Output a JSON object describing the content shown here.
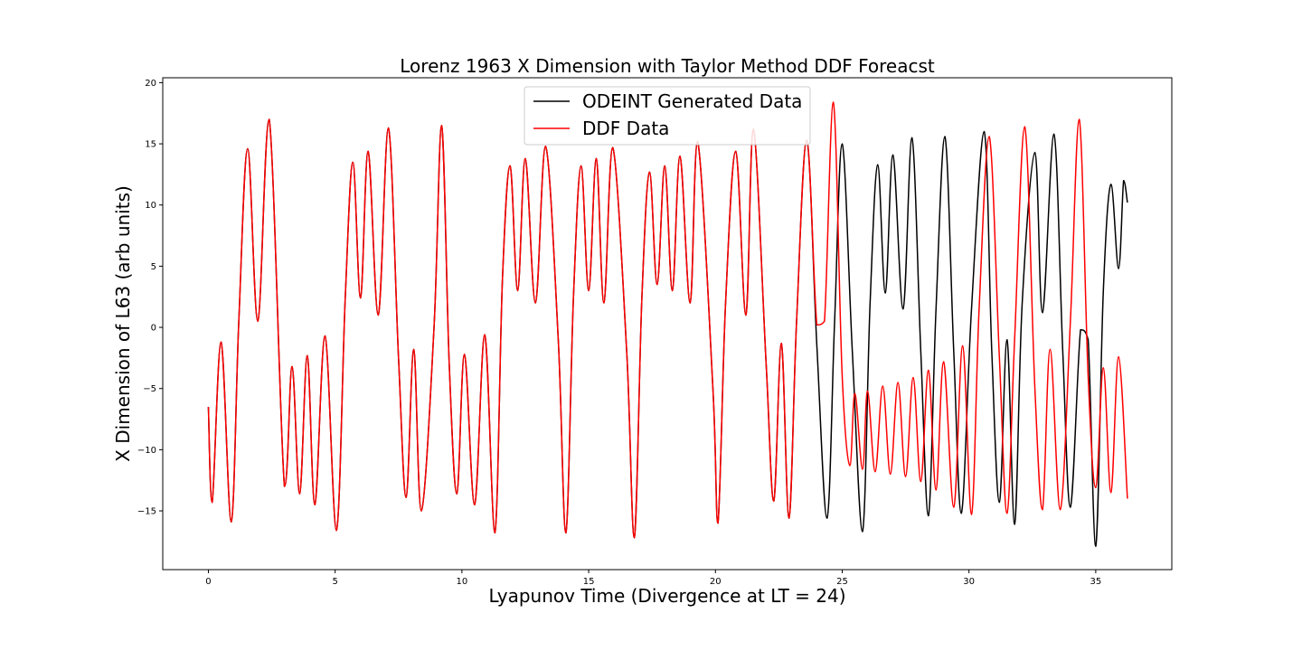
{
  "chart_data": {
    "type": "line",
    "title": "Lorenz 1963 X Dimension with Taylor Method DDF Foreacst",
    "xlabel": "Lyapunov Time (Divergence at LT = 24)",
    "ylabel": "X Dimension of L63 (arb units)",
    "xlim": [
      -1.8,
      38.0
    ],
    "ylim": [
      -19.8,
      20.4
    ],
    "xticks": [
      0,
      5,
      10,
      15,
      20,
      25,
      30,
      35
    ],
    "yticks": [
      -15,
      -10,
      -5,
      0,
      5,
      10,
      15,
      20
    ],
    "xtick_labels": [
      "0",
      "5",
      "10",
      "15",
      "20",
      "25",
      "30",
      "35"
    ],
    "ytick_labels": [
      "−15",
      "−10",
      "−5",
      "0",
      "5",
      "10",
      "15",
      "20"
    ],
    "grid": false,
    "legend": "upper-center",
    "series": [
      {
        "name": "ODEINT Generated Data",
        "color": "#000000",
        "points": [
          [
            0,
            -6.5
          ],
          [
            0.15,
            -14.3
          ],
          [
            0.5,
            -1.2
          ],
          [
            0.9,
            -15.9
          ],
          [
            1.2,
            0.5
          ],
          [
            1.55,
            14.6
          ],
          [
            1.95,
            0.5
          ],
          [
            2.4,
            17.0
          ],
          [
            3.0,
            -13.0
          ],
          [
            3.3,
            -3.2
          ],
          [
            3.6,
            -13.6
          ],
          [
            3.9,
            -2.3
          ],
          [
            4.2,
            -14.5
          ],
          [
            4.6,
            -0.7
          ],
          [
            5.05,
            -16.6
          ],
          [
            5.4,
            2.5
          ],
          [
            5.7,
            13.5
          ],
          [
            6.0,
            2.4
          ],
          [
            6.3,
            14.4
          ],
          [
            6.7,
            1.0
          ],
          [
            7.1,
            16.3
          ],
          [
            7.5,
            -2.5
          ],
          [
            7.8,
            -13.9
          ],
          [
            8.1,
            -1.8
          ],
          [
            8.4,
            -15.0
          ],
          [
            8.9,
            0.0
          ],
          [
            9.2,
            16.5
          ],
          [
            9.5,
            -3.0
          ],
          [
            9.8,
            -13.6
          ],
          [
            10.1,
            -2.2
          ],
          [
            10.5,
            -14.5
          ],
          [
            10.9,
            -0.6
          ],
          [
            11.3,
            -16.8
          ],
          [
            11.6,
            4.0
          ],
          [
            11.9,
            13.2
          ],
          [
            12.2,
            3.0
          ],
          [
            12.5,
            13.8
          ],
          [
            12.9,
            2.0
          ],
          [
            13.3,
            14.8
          ],
          [
            13.8,
            -1.0
          ],
          [
            14.1,
            -16.8
          ],
          [
            14.4,
            2.5
          ],
          [
            14.7,
            13.2
          ],
          [
            15.0,
            3.0
          ],
          [
            15.3,
            13.8
          ],
          [
            15.6,
            2.0
          ],
          [
            15.95,
            14.7
          ],
          [
            16.5,
            -2.0
          ],
          [
            16.8,
            -17.2
          ],
          [
            17.1,
            2.5
          ],
          [
            17.4,
            12.7
          ],
          [
            17.7,
            3.5
          ],
          [
            18.0,
            13.2
          ],
          [
            18.3,
            3.0
          ],
          [
            18.6,
            14.0
          ],
          [
            19.0,
            2.0
          ],
          [
            19.3,
            15.2
          ],
          [
            19.9,
            -5.0
          ],
          [
            20.1,
            -16.0
          ],
          [
            20.4,
            2.0
          ],
          [
            20.8,
            14.4
          ],
          [
            21.2,
            1.0
          ],
          [
            21.5,
            16.2
          ],
          [
            22.0,
            -3.0
          ],
          [
            22.3,
            -14.2
          ],
          [
            22.6,
            -1.3
          ],
          [
            22.9,
            -15.6
          ],
          [
            23.2,
            0.5
          ],
          [
            23.6,
            15.3
          ],
          [
            24.0,
            -1.5
          ],
          [
            24.4,
            -15.6
          ],
          [
            24.7,
            0.5
          ],
          [
            25.0,
            15.0
          ],
          [
            25.4,
            -2.0
          ],
          [
            25.8,
            -16.7
          ],
          [
            26.1,
            2.0
          ],
          [
            26.4,
            13.3
          ],
          [
            26.7,
            2.8
          ],
          [
            27.0,
            14.1
          ],
          [
            27.4,
            1.5
          ],
          [
            27.75,
            15.5
          ],
          [
            28.1,
            -2.0
          ],
          [
            28.4,
            -15.4
          ],
          [
            28.7,
            1.5
          ],
          [
            29.05,
            15.6
          ],
          [
            29.4,
            -2.0
          ],
          [
            29.7,
            -15.2
          ],
          [
            30.1,
            1.5
          ],
          [
            30.6,
            16.0
          ],
          [
            30.9,
            -2.0
          ],
          [
            31.2,
            -14.3
          ],
          [
            31.5,
            -1.0
          ],
          [
            31.8,
            -16.1
          ],
          [
            32.1,
            2.0
          ],
          [
            32.6,
            14.3
          ],
          [
            32.9,
            1.2
          ],
          [
            33.35,
            15.8
          ],
          [
            33.7,
            -2.0
          ],
          [
            34.0,
            -14.7
          ],
          [
            34.4,
            -0.2
          ],
          [
            34.7,
            -1.0
          ],
          [
            35.0,
            -17.9
          ],
          [
            35.3,
            3.0
          ],
          [
            35.6,
            11.7
          ],
          [
            35.9,
            4.8
          ],
          [
            36.1,
            12.0
          ],
          [
            36.25,
            10.2
          ]
        ]
      },
      {
        "name": "DDF Data",
        "color": "#ff0000",
        "points": [
          [
            0,
            -6.5
          ],
          [
            0.15,
            -14.3
          ],
          [
            0.5,
            -1.2
          ],
          [
            0.9,
            -15.9
          ],
          [
            1.2,
            0.5
          ],
          [
            1.55,
            14.6
          ],
          [
            1.95,
            0.5
          ],
          [
            2.4,
            17.0
          ],
          [
            3.0,
            -13.0
          ],
          [
            3.3,
            -3.2
          ],
          [
            3.6,
            -13.6
          ],
          [
            3.9,
            -2.3
          ],
          [
            4.2,
            -14.5
          ],
          [
            4.6,
            -0.7
          ],
          [
            5.05,
            -16.6
          ],
          [
            5.4,
            2.5
          ],
          [
            5.7,
            13.5
          ],
          [
            6.0,
            2.4
          ],
          [
            6.3,
            14.4
          ],
          [
            6.7,
            1.0
          ],
          [
            7.1,
            16.3
          ],
          [
            7.5,
            -2.5
          ],
          [
            7.8,
            -13.9
          ],
          [
            8.1,
            -1.8
          ],
          [
            8.4,
            -15.0
          ],
          [
            8.9,
            0.0
          ],
          [
            9.2,
            16.5
          ],
          [
            9.5,
            -3.0
          ],
          [
            9.8,
            -13.6
          ],
          [
            10.1,
            -2.2
          ],
          [
            10.5,
            -14.5
          ],
          [
            10.9,
            -0.6
          ],
          [
            11.3,
            -16.8
          ],
          [
            11.6,
            4.0
          ],
          [
            11.9,
            13.2
          ],
          [
            12.2,
            3.0
          ],
          [
            12.5,
            13.8
          ],
          [
            12.9,
            2.0
          ],
          [
            13.3,
            14.8
          ],
          [
            13.8,
            -1.0
          ],
          [
            14.1,
            -16.8
          ],
          [
            14.4,
            2.5
          ],
          [
            14.7,
            13.2
          ],
          [
            15.0,
            3.0
          ],
          [
            15.3,
            13.8
          ],
          [
            15.6,
            2.0
          ],
          [
            15.95,
            14.7
          ],
          [
            16.5,
            -2.0
          ],
          [
            16.8,
            -17.2
          ],
          [
            17.1,
            2.5
          ],
          [
            17.4,
            12.7
          ],
          [
            17.7,
            3.5
          ],
          [
            18.0,
            13.2
          ],
          [
            18.3,
            3.0
          ],
          [
            18.6,
            14.0
          ],
          [
            19.0,
            2.0
          ],
          [
            19.3,
            15.2
          ],
          [
            19.9,
            -5.0
          ],
          [
            20.1,
            -16.0
          ],
          [
            20.4,
            2.0
          ],
          [
            20.8,
            14.4
          ],
          [
            21.2,
            1.0
          ],
          [
            21.5,
            16.2
          ],
          [
            22.0,
            -3.0
          ],
          [
            22.3,
            -14.2
          ],
          [
            22.6,
            -1.3
          ],
          [
            22.9,
            -15.6
          ],
          [
            23.2,
            0.5
          ],
          [
            23.6,
            15.3
          ],
          [
            24.0,
            0.2
          ],
          [
            24.3,
            0.5
          ],
          [
            24.65,
            18.4
          ],
          [
            25.0,
            -4.0
          ],
          [
            25.3,
            -11.3
          ],
          [
            25.5,
            -5.4
          ],
          [
            25.8,
            -11.6
          ],
          [
            26.0,
            -5.2
          ],
          [
            26.3,
            -11.8
          ],
          [
            26.6,
            -4.8
          ],
          [
            26.9,
            -12.0
          ],
          [
            27.2,
            -4.5
          ],
          [
            27.5,
            -12.2
          ],
          [
            27.8,
            -4.1
          ],
          [
            28.1,
            -12.6
          ],
          [
            28.4,
            -3.5
          ],
          [
            28.7,
            -13.3
          ],
          [
            29.0,
            -2.8
          ],
          [
            29.4,
            -14.7
          ],
          [
            29.75,
            -1.5
          ],
          [
            30.1,
            -15.3
          ],
          [
            30.4,
            1.5
          ],
          [
            30.8,
            15.6
          ],
          [
            31.2,
            -2.5
          ],
          [
            31.5,
            -15.2
          ],
          [
            31.8,
            -1.0
          ],
          [
            32.2,
            16.4
          ],
          [
            32.6,
            -5.0
          ],
          [
            32.9,
            -14.9
          ],
          [
            33.2,
            -1.8
          ],
          [
            33.6,
            -14.9
          ],
          [
            34.0,
            0.5
          ],
          [
            34.35,
            17.0
          ],
          [
            34.7,
            -4.0
          ],
          [
            35.0,
            -13.1
          ],
          [
            35.3,
            -3.3
          ],
          [
            35.6,
            -13.5
          ],
          [
            35.9,
            -2.4
          ],
          [
            36.25,
            -14.0
          ]
        ]
      }
    ]
  }
}
